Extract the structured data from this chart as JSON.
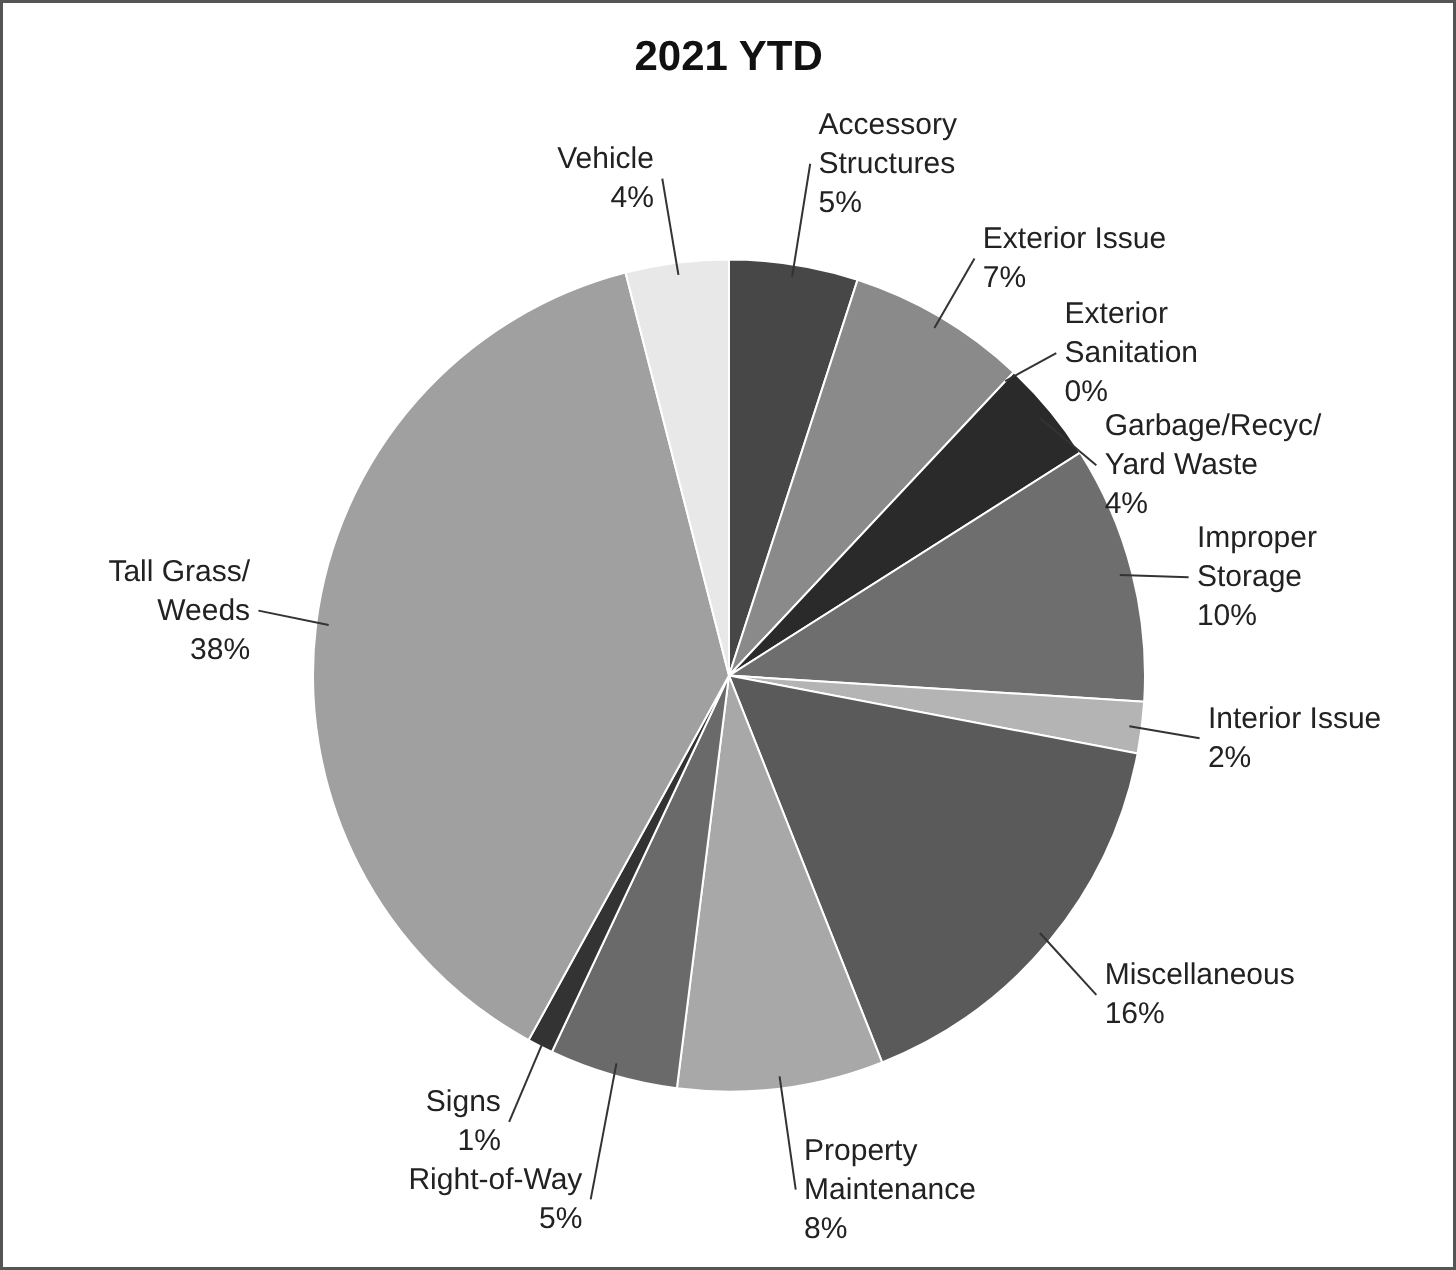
{
  "chart_data": {
    "type": "pie",
    "title": "2021 YTD",
    "categories": [
      "Accessory Structures",
      "Exterior Issue",
      "Exterior Sanitation",
      "Garbage/Recyc/Yard Waste",
      "Improper Storage",
      "Interior Issue",
      "Miscellaneous",
      "Property Maintenance",
      "Right-of-Way",
      "Signs",
      "Tall Grass/Weeds",
      "Vehicle"
    ],
    "values": [
      5,
      7,
      0,
      4,
      10,
      2,
      16,
      8,
      5,
      1,
      38,
      4
    ],
    "value_labels": [
      "5%",
      "7%",
      "0%",
      "4%",
      "10%",
      "2%",
      "16%",
      "8%",
      "5%",
      "1%",
      "38%",
      "4%"
    ],
    "colors": [
      "#474747",
      "#8a8a8a",
      "#1a1a1a",
      "#2a2a2a",
      "#6e6e6e",
      "#b4b4b4",
      "#5a5a5a",
      "#a8a8a8",
      "#6a6a6a",
      "#333333",
      "#a0a0a0",
      "#e8e8e8"
    ]
  }
}
